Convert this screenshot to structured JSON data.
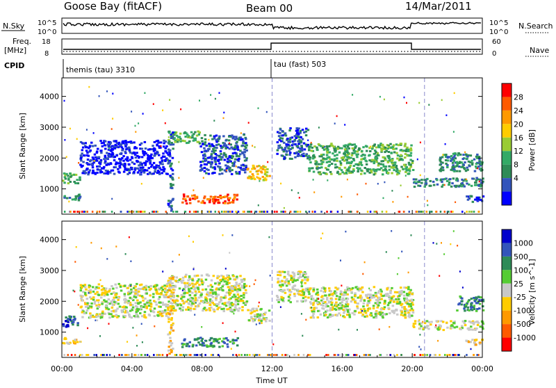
{
  "header": {
    "station": "Goose Bay (fitACF)",
    "beam": "Beam 00",
    "date": "14/Mar/2011"
  },
  "strips": {
    "nsky_label": "N.Sky",
    "nsky_ticks": [
      "10^5",
      "10^0"
    ],
    "nsearch_label": "N.Search",
    "nsearch_ticks": [
      "10^5",
      "10^0"
    ],
    "freq_label": "Freq.",
    "freq_unit": "[MHz]",
    "freq_ticks": [
      "18",
      "8"
    ],
    "nave_label": "Nave",
    "nave_ticks": [
      "60",
      "0"
    ],
    "cpid_label": "CPID",
    "cpid_left": "themis (tau) 3310",
    "cpid_right": "tau (fast) 503"
  },
  "chart_data": [
    {
      "type": "heatmap",
      "quantity": "Power",
      "x": [
        "00:00",
        "04:00",
        "08:00",
        "12:00",
        "16:00",
        "20:00",
        "00:00"
      ],
      "xlabel": "Time UT",
      "ylabel": "Slant Range [km]",
      "yticks": [
        1000,
        2000,
        3000,
        4000
      ],
      "ylim": [
        180,
        4600
      ],
      "colorbar": {
        "label": "Power [dB]",
        "ticks": [
          "28",
          "24",
          "20",
          "16",
          "12",
          "8",
          "4"
        ],
        "colors": [
          "#ff0000",
          "#ff5a00",
          "#ff9900",
          "#ffcc00",
          "#99cc33",
          "#33aa66",
          "#2e8b57",
          "#3355bb",
          "#0000ff"
        ]
      },
      "regions": [
        {
          "t0": 0.0,
          "t1": 1.0,
          "r0": 1200,
          "r1": 1550,
          "level": 3
        },
        {
          "t0": 0.0,
          "t1": 1.0,
          "r0": 650,
          "r1": 850,
          "level": 2
        },
        {
          "t0": 1.0,
          "t1": 6.0,
          "r0": 1500,
          "r1": 2600,
          "level": 0
        },
        {
          "t0": 6.0,
          "t1": 7.8,
          "r0": 2500,
          "r1": 2900,
          "level": 3
        },
        {
          "t0": 6.0,
          "t1": 6.3,
          "r0": 300,
          "r1": 2900,
          "level": 1
        },
        {
          "t0": 7.8,
          "t1": 10.5,
          "r0": 1500,
          "r1": 2800,
          "level": 1
        },
        {
          "t0": 10.5,
          "t1": 11.8,
          "r0": 1300,
          "r1": 1800,
          "level": 5
        },
        {
          "t0": 6.8,
          "t1": 10.0,
          "r0": 550,
          "r1": 850,
          "level": 7
        },
        {
          "t0": 12.2,
          "t1": 14.0,
          "r0": 2000,
          "r1": 3000,
          "level": 1
        },
        {
          "t0": 14.0,
          "t1": 20.0,
          "r0": 1500,
          "r1": 2500,
          "level": 3
        },
        {
          "t0": 20.0,
          "t1": 24.0,
          "r0": 1100,
          "r1": 1400,
          "level": 2
        },
        {
          "t0": 21.5,
          "t1": 24.0,
          "r0": 1600,
          "r1": 2200,
          "level": 2
        },
        {
          "t0": 23.0,
          "t1": 24.0,
          "r0": 600,
          "r1": 800,
          "level": 1
        }
      ]
    },
    {
      "type": "heatmap",
      "quantity": "Velocity",
      "x": [
        "00:00",
        "04:00",
        "08:00",
        "12:00",
        "16:00",
        "20:00",
        "00:00"
      ],
      "xlabel": "Time UT",
      "ylabel": "Slant Range [km]",
      "yticks": [
        1000,
        2000,
        3000,
        4000
      ],
      "ylim": [
        180,
        4600
      ],
      "colorbar": {
        "label": "Velocity [m s^-1]",
        "ticks": [
          "1000",
          "500",
          "100",
          "25",
          "-25",
          "-100",
          "-500",
          "-1000"
        ],
        "colors": [
          "#0000cc",
          "#3355bb",
          "#2e8b57",
          "#55cc33",
          "#c8c8c8",
          "#ffcc00",
          "#ff9900",
          "#ff5a00",
          "#ff0000"
        ]
      },
      "regions": [
        {
          "t0": 0.0,
          "t1": 1.0,
          "r0": 1200,
          "r1": 1550,
          "level": 7
        },
        {
          "t0": 0.0,
          "t1": 1.0,
          "r0": 650,
          "r1": 850,
          "level": 3
        },
        {
          "t0": 1.0,
          "t1": 6.0,
          "r0": 1500,
          "r1": 2600,
          "level": 4
        },
        {
          "t0": 6.0,
          "t1": 10.5,
          "r0": 1700,
          "r1": 2900,
          "level": 4
        },
        {
          "t0": 6.0,
          "t1": 6.3,
          "r0": 300,
          "r1": 2900,
          "level": 3
        },
        {
          "t0": 10.5,
          "t1": 11.8,
          "r0": 1300,
          "r1": 1800,
          "level": 4
        },
        {
          "t0": 6.8,
          "t1": 10.0,
          "r0": 550,
          "r1": 850,
          "level": 6
        },
        {
          "t0": 12.2,
          "t1": 14.0,
          "r0": 2000,
          "r1": 3000,
          "level": 4
        },
        {
          "t0": 14.0,
          "t1": 20.0,
          "r0": 1500,
          "r1": 2500,
          "level": 4
        },
        {
          "t0": 20.0,
          "t1": 24.0,
          "r0": 1100,
          "r1": 1400,
          "level": 4
        },
        {
          "t0": 22.5,
          "t1": 24.0,
          "r0": 1700,
          "r1": 2200,
          "level": 6
        },
        {
          "t0": 23.0,
          "t1": 24.0,
          "r0": 600,
          "r1": 800,
          "level": 3
        }
      ]
    }
  ]
}
